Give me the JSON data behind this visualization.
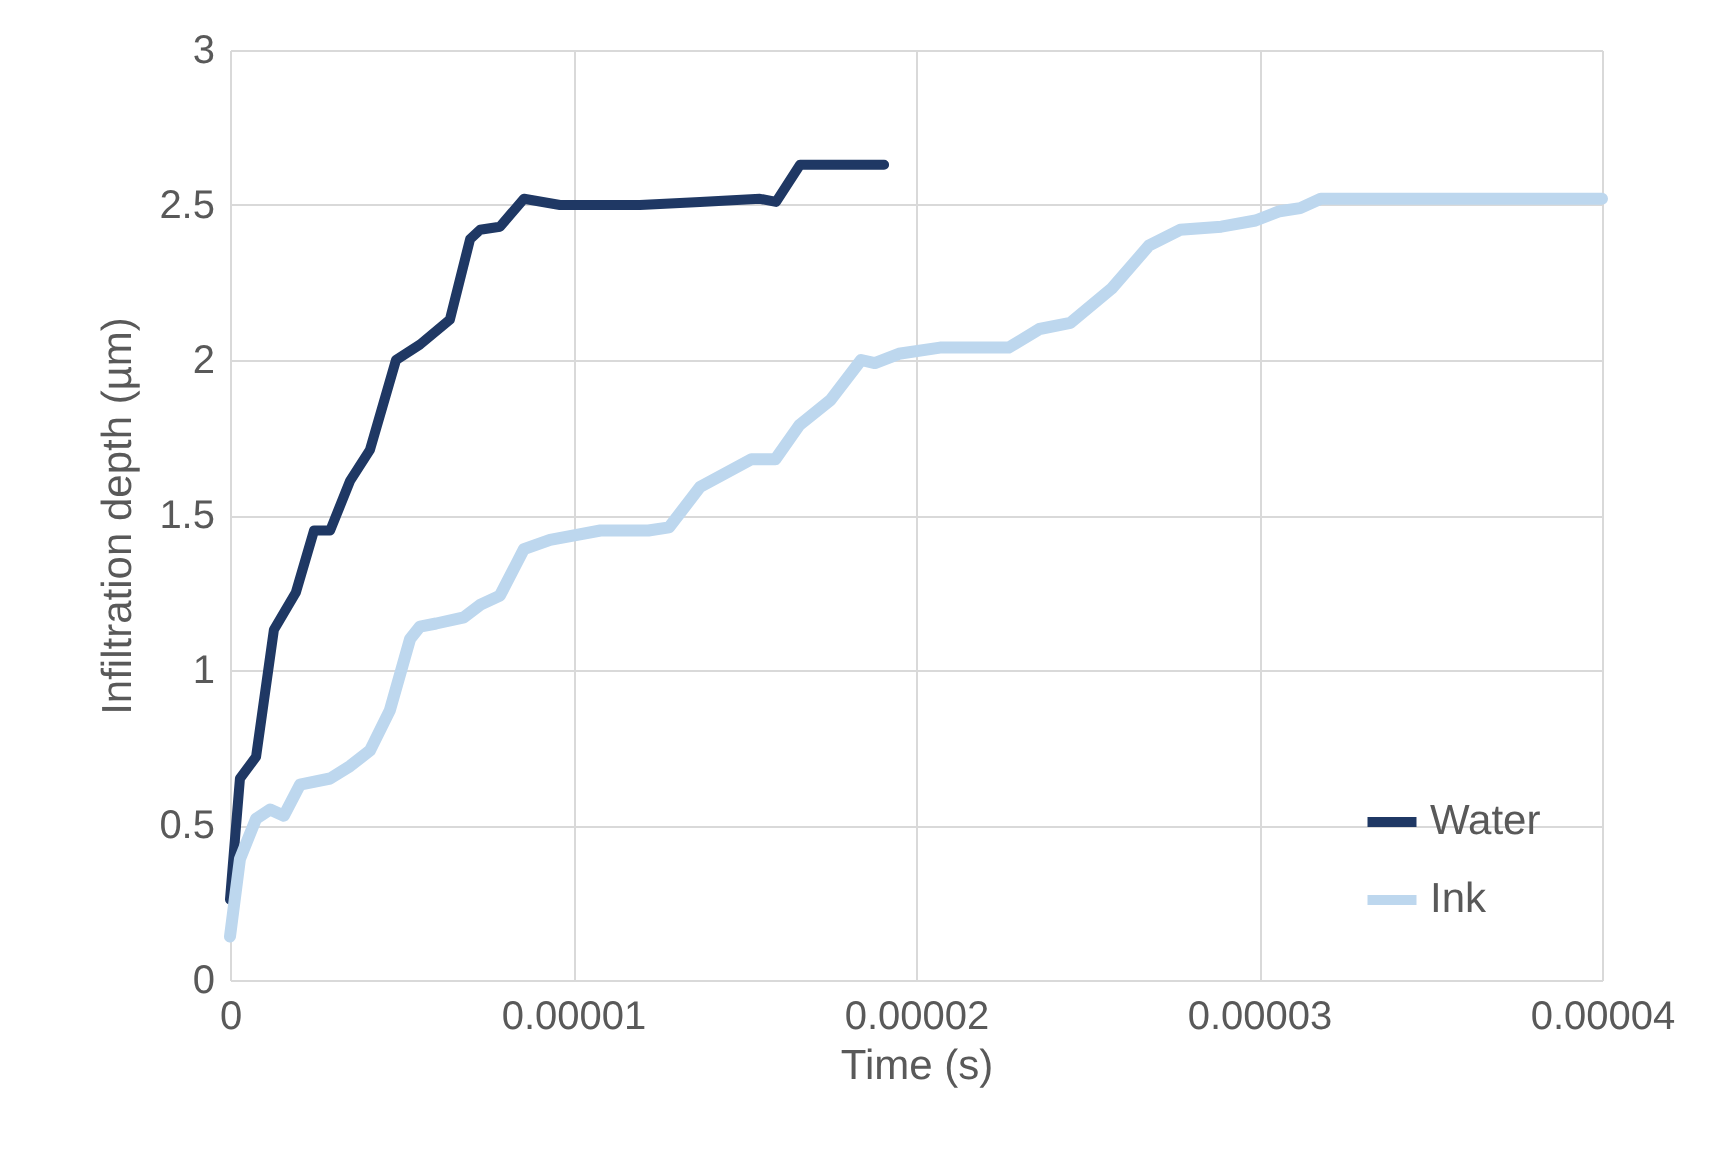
{
  "chart_data": {
    "type": "line",
    "xlabel": "Time (s)",
    "ylabel": "Infiltration depth (µm)",
    "xlim": [
      0,
      4e-05
    ],
    "xticks": [
      0,
      {
        "value": 1e-05,
        "label": "0.00001"
      },
      {
        "value": 2e-05,
        "label": "0.00002"
      },
      {
        "value": 3e-05,
        "label": "0.00003"
      },
      {
        "value": 4e-05,
        "label": "0.00004"
      }
    ],
    "ylim": [
      0,
      3
    ],
    "yticks": [
      0,
      0.5,
      1,
      1.5,
      2,
      2.5,
      3
    ],
    "grid": true,
    "legend": "bottom right",
    "marker": "none",
    "line_style": "solid",
    "series": [
      {
        "name": "Water",
        "color": "#1f3864",
        "x": [
          0,
          2.9e-07,
          7.6e-07,
          1.28e-06,
          1.92e-06,
          2.45e-06,
          2.92e-06,
          3.5e-06,
          4.08e-06,
          4.84e-06,
          5.54e-06,
          6.41e-06,
          7e-06,
          7.29e-06,
          7.87e-06,
          8.57e-06,
          9.62e-06,
          1.195e-05,
          1.37e-05,
          1.545e-05,
          1.592e-05,
          1.662e-05,
          1.907e-05
        ],
        "values": [
          0.26,
          0.65,
          0.72,
          1.13,
          1.25,
          1.45,
          1.45,
          1.61,
          1.71,
          2.0,
          2.05,
          2.13,
          2.39,
          2.42,
          2.43,
          2.52,
          2.5,
          2.5,
          2.51,
          2.52,
          2.51,
          2.63,
          2.63
        ]
      },
      {
        "name": "Ink",
        "color": "#bdd7ee",
        "x": [
          0,
          2.9e-07,
          7.6e-07,
          1.17e-06,
          1.57e-06,
          2.04e-06,
          2.92e-06,
          3.5e-06,
          4.08e-06,
          4.66e-06,
          5.25e-06,
          5.54e-06,
          6.01e-06,
          6.82e-06,
          7.29e-06,
          7.87e-06,
          8.57e-06,
          9.33e-06,
          1.08e-05,
          1.22e-05,
          1.28e-05,
          1.37e-05,
          1.52e-05,
          1.59e-05,
          1.66e-05,
          1.75e-05,
          1.84e-05,
          1.88e-05,
          1.95e-05,
          2.07e-05,
          2.27e-05,
          2.36e-05,
          2.45e-05,
          2.57e-05,
          2.68e-05,
          2.77e-05,
          2.89e-05,
          2.99e-05,
          3.06e-05,
          3.12e-05,
          3.18e-05,
          3.29e-05,
          3.41e-05,
          4e-05
        ],
        "values": [
          0.14,
          0.39,
          0.52,
          0.55,
          0.53,
          0.63,
          0.65,
          0.69,
          0.74,
          0.87,
          1.1,
          1.14,
          1.15,
          1.17,
          1.21,
          1.24,
          1.39,
          1.42,
          1.45,
          1.45,
          1.46,
          1.59,
          1.68,
          1.68,
          1.79,
          1.87,
          2.0,
          1.99,
          2.02,
          2.04,
          2.04,
          2.1,
          2.12,
          2.23,
          2.37,
          2.42,
          2.43,
          2.45,
          2.48,
          2.49,
          2.52,
          2.52,
          2.52,
          2.52
        ]
      }
    ]
  }
}
